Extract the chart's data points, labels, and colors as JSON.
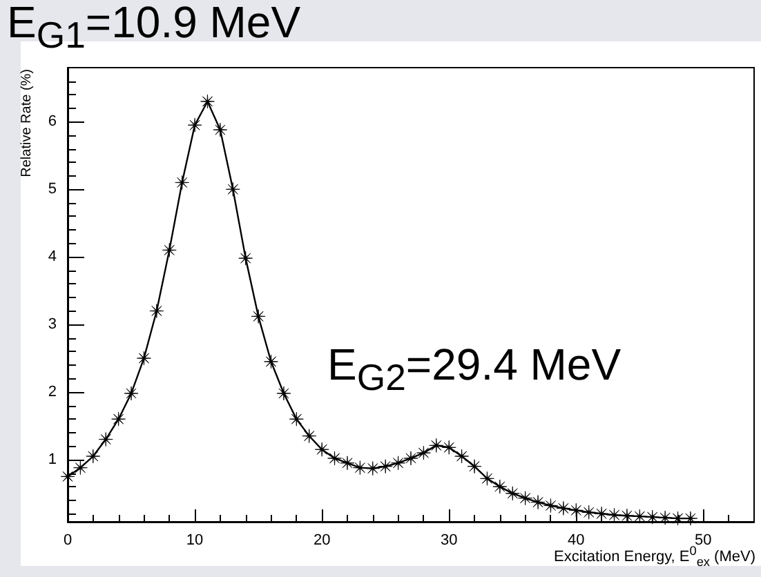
{
  "chart_data": {
    "type": "line",
    "xlabel": "Excitation Energy, E$^{0}$$_{ex}$ (MeV)",
    "ylabel": "Relative Rate (%)",
    "annotations": [
      "E$_{G1}$=10.9 MeV",
      "E$_{G2}$=29.4 MeV"
    ],
    "x": [
      0,
      1,
      2,
      3,
      4,
      5,
      6,
      7,
      8,
      9,
      10,
      11,
      12,
      13,
      14,
      15,
      16,
      17,
      18,
      19,
      20,
      21,
      22,
      23,
      24,
      25,
      26,
      27,
      28,
      29,
      30,
      31,
      32,
      33,
      34,
      35,
      36,
      37,
      38,
      39,
      40,
      41,
      42,
      43,
      44,
      45,
      46,
      47,
      48,
      49
    ],
    "series": [
      {
        "color": "#000000",
        "values": [
          0.75,
          0.88,
          1.05,
          1.3,
          1.6,
          1.98,
          2.5,
          3.2,
          4.1,
          5.1,
          5.95,
          6.3,
          5.88,
          5.0,
          3.98,
          3.12,
          2.45,
          1.98,
          1.6,
          1.35,
          1.15,
          1.02,
          0.95,
          0.88,
          0.87,
          0.9,
          0.95,
          1.02,
          1.1,
          1.21,
          1.18,
          1.05,
          0.9,
          0.72,
          0.6,
          0.5,
          0.43,
          0.37,
          0.32,
          0.28,
          0.25,
          0.22,
          0.2,
          0.18,
          0.17,
          0.16,
          0.15,
          0.14,
          0.13,
          0.13
        ]
      }
    ],
    "xlim": [
      0,
      54
    ],
    "xticks": [
      0,
      10,
      20,
      30,
      40,
      50
    ],
    "ylim": [
      0.08,
      6.8
    ],
    "yticks": [
      1,
      2,
      3,
      4,
      5,
      6
    ],
    "marker": "cross",
    "line_style": "solid",
    "grid": false
  }
}
